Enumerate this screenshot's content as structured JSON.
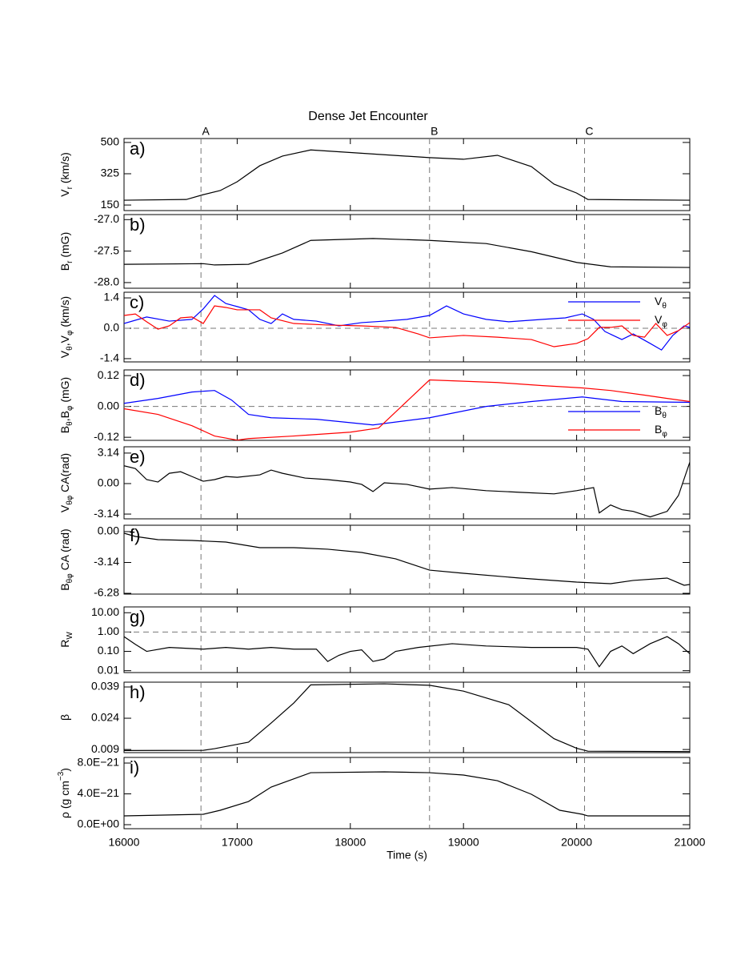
{
  "chart_data": [
    {
      "type": "line",
      "title": "Dense Jet Encounter",
      "label": "a)",
      "ylabel": [
        {
          "t": "V"
        },
        {
          "t": "r",
          "sub": true
        },
        {
          "t": " (km/s)"
        }
      ],
      "markers": [
        {
          "label": "A",
          "x": 16680
        },
        {
          "label": "B",
          "x": 18700
        },
        {
          "label": "C",
          "x": 20070
        }
      ],
      "xlim": [
        16000,
        21000
      ],
      "xticks": [
        16000,
        17000,
        18000,
        19000,
        20000,
        21000
      ],
      "ylim": [
        119,
        522
      ],
      "yticks": [
        150,
        325,
        500
      ],
      "series": [
        {
          "color": "#000000",
          "x": [
            16000,
            16550,
            16700,
            16850,
            17000,
            17200,
            17400,
            17650,
            18700,
            19000,
            19300,
            19600,
            19800,
            20000,
            20100,
            21000
          ],
          "values": [
            177,
            181,
            208,
            231,
            280,
            370,
            424,
            458,
            415,
            406,
            428,
            365,
            267,
            217,
            181,
            177
          ]
        }
      ]
    },
    {
      "type": "line",
      "label": "b)",
      "ylabel": [
        {
          "t": "B"
        },
        {
          "t": "r",
          "sub": true
        },
        {
          "t": " (mG)"
        }
      ],
      "xlim": [
        16000,
        21000
      ],
      "xticks": [
        16000,
        17000,
        18000,
        19000,
        20000,
        21000
      ],
      "ylim": [
        -28.09,
        -26.92
      ],
      "yticks": [
        {
          "value": -27.0,
          "label": "-27.0"
        },
        -27.5,
        {
          "value": -28.0,
          "label": "-28.0"
        }
      ],
      "series": [
        {
          "color": "#000000",
          "x": [
            16000,
            16700,
            16800,
            17100,
            17400,
            17650,
            18200,
            18700,
            19200,
            19600,
            20000,
            20300,
            21000
          ],
          "values": [
            -27.71,
            -27.7,
            -27.72,
            -27.71,
            -27.53,
            -27.33,
            -27.3,
            -27.33,
            -27.38,
            -27.51,
            -27.68,
            -27.75,
            -27.76
          ]
        }
      ]
    },
    {
      "type": "line",
      "label": "c)",
      "ylabel": [
        {
          "t": "V"
        },
        {
          "t": "θ",
          "sub": true
        },
        {
          "t": ",V"
        },
        {
          "t": "φ",
          "sub": true
        },
        {
          "t": " (km/s)"
        }
      ],
      "xlim": [
        16000,
        21000
      ],
      "xticks": [
        16000,
        17000,
        18000,
        19000,
        20000,
        21000
      ],
      "ylim": [
        -1.55,
        1.66
      ],
      "yticks": [
        1.4,
        {
          "value": 0.0,
          "label": "0.0"
        },
        -1.4
      ],
      "hlines": [
        0
      ],
      "legend": "upper right",
      "series": [
        {
          "name": [
            {
              "t": "V"
            },
            {
              "t": "θ",
              "sub": true
            }
          ],
          "color": "#0000ff",
          "x": [
            16000,
            16200,
            16400,
            16600,
            16700,
            16800,
            16900,
            17000,
            17100,
            17200,
            17300,
            17400,
            17500,
            17700,
            17900,
            18100,
            18300,
            18500,
            18700,
            18850,
            19000,
            19200,
            19400,
            19700,
            19900,
            20050,
            20150,
            20250,
            20400,
            20500,
            20650,
            20750,
            20850,
            20950,
            21000
          ],
          "values": [
            0.22,
            0.52,
            0.33,
            0.41,
            0.89,
            1.51,
            1.14,
            1.0,
            0.85,
            0.41,
            0.22,
            0.66,
            0.41,
            0.33,
            0.11,
            0.26,
            0.33,
            0.41,
            0.59,
            1.03,
            0.66,
            0.41,
            0.3,
            0.41,
            0.48,
            0.66,
            0.41,
            -0.15,
            -0.52,
            -0.26,
            -0.7,
            -1.0,
            -0.33,
            0.11,
            0.04
          ]
        },
        {
          "name": [
            {
              "t": "V"
            },
            {
              "t": "φ",
              "sub": true
            }
          ],
          "color": "#ff0000",
          "x": [
            16000,
            16100,
            16200,
            16300,
            16400,
            16500,
            16600,
            16700,
            16800,
            16900,
            17000,
            17200,
            17300,
            17500,
            17800,
            18100,
            18400,
            18600,
            18700,
            19000,
            19300,
            19600,
            19800,
            20000,
            20100,
            20200,
            20300,
            20400,
            20500,
            20600,
            20700,
            20800,
            20900,
            21000
          ],
          "values": [
            0.59,
            0.66,
            0.3,
            -0.04,
            0.11,
            0.48,
            0.52,
            0.22,
            1.03,
            0.96,
            0.85,
            0.85,
            0.48,
            0.22,
            0.15,
            0.11,
            0.04,
            -0.26,
            -0.44,
            -0.33,
            -0.41,
            -0.52,
            -0.85,
            -0.7,
            -0.48,
            0.04,
            0.04,
            0.11,
            -0.33,
            -0.41,
            0.22,
            -0.33,
            -0.11,
            0.26
          ]
        }
      ]
    },
    {
      "type": "line",
      "label": "d)",
      "ylabel": [
        {
          "t": "B"
        },
        {
          "t": "θ",
          "sub": true
        },
        {
          "t": ",B"
        },
        {
          "t": "φ",
          "sub": true
        },
        {
          "t": " (mG)"
        }
      ],
      "xlim": [
        16000,
        21000
      ],
      "xticks": [
        16000,
        17000,
        18000,
        19000,
        20000,
        21000
      ],
      "ylim": [
        -0.132,
        0.142
      ],
      "yticks": [
        0.12,
        {
          "value": 0.0,
          "label": "0.00"
        },
        -0.12
      ],
      "hlines": [
        0
      ],
      "legend": "lower right",
      "series": [
        {
          "name": [
            {
              "t": "B"
            },
            {
              "t": "θ",
              "sub": true
            }
          ],
          "color": "#0000ff",
          "x": [
            16000,
            16300,
            16600,
            16800,
            16950,
            17100,
            17300,
            17700,
            18200,
            18700,
            19200,
            19600,
            20050,
            20400,
            21000
          ],
          "values": [
            0.012,
            0.031,
            0.056,
            0.062,
            0.025,
            -0.031,
            -0.044,
            -0.05,
            -0.072,
            -0.044,
            0.0,
            0.019,
            0.037,
            0.019,
            0.016
          ]
        },
        {
          "name": [
            {
              "t": "B"
            },
            {
              "t": "φ",
              "sub": true
            }
          ],
          "color": "#ff0000",
          "x": [
            16000,
            16300,
            16600,
            16800,
            17000,
            17100,
            17500,
            18000,
            18250,
            18700,
            19300,
            19700,
            20050,
            20300,
            20600,
            20800,
            21000
          ],
          "values": [
            -0.009,
            -0.031,
            -0.075,
            -0.115,
            -0.131,
            -0.125,
            -0.115,
            -0.1,
            -0.084,
            0.103,
            0.093,
            0.081,
            0.072,
            0.062,
            0.044,
            0.031,
            0.019
          ]
        }
      ]
    },
    {
      "type": "line",
      "label": "e)",
      "ylabel": [
        {
          "t": "V"
        },
        {
          "t": "θφ",
          "sub": true
        },
        {
          "t": " CA(rad)"
        }
      ],
      "xlim": [
        16000,
        21000
      ],
      "xticks": [
        16000,
        17000,
        18000,
        19000,
        20000,
        21000
      ],
      "ylim": [
        -3.63,
        3.79
      ],
      "yticks": [
        3.14,
        {
          "value": 0.0,
          "label": "0.00"
        },
        -3.14
      ],
      "series": [
        {
          "color": "#000000",
          "x": [
            16000,
            16100,
            16200,
            16300,
            16400,
            16500,
            16600,
            16700,
            16800,
            16900,
            17000,
            17200,
            17300,
            17400,
            17600,
            17800,
            18000,
            18100,
            18200,
            18300,
            18500,
            18700,
            18900,
            19200,
            19500,
            19800,
            20000,
            20150,
            20200,
            20300,
            20400,
            20500,
            20650,
            20800,
            20900,
            21000
          ],
          "values": [
            1.83,
            1.55,
            0.41,
            0.16,
            1.06,
            1.22,
            0.73,
            0.24,
            0.41,
            0.73,
            0.65,
            0.9,
            1.39,
            1.06,
            0.57,
            0.41,
            0.16,
            -0.08,
            -0.82,
            0.08,
            -0.08,
            -0.57,
            -0.41,
            -0.73,
            -0.9,
            -1.06,
            -0.73,
            -0.41,
            -3.02,
            -2.2,
            -2.69,
            -2.86,
            -3.43,
            -2.86,
            -1.22,
            2.2
          ]
        }
      ]
    },
    {
      "type": "line",
      "label": "f)",
      "ylabel": [
        {
          "t": "B"
        },
        {
          "t": "θφ",
          "sub": true
        },
        {
          "t": " CA (rad)"
        }
      ],
      "xlim": [
        16000,
        21000
      ],
      "xticks": [
        16000,
        17000,
        18000,
        19000,
        20000,
        21000
      ],
      "ylim": [
        -6.36,
        0.65
      ],
      "yticks": [
        {
          "value": 0.0,
          "label": "0.00"
        },
        -3.14,
        -6.28
      ],
      "series": [
        {
          "color": "#000000",
          "x": [
            16000,
            16100,
            16300,
            16600,
            16900,
            17200,
            17500,
            17800,
            18100,
            18400,
            18700,
            19000,
            19500,
            20000,
            20300,
            20500,
            20800,
            20950,
            21000
          ],
          "values": [
            -0.16,
            -0.49,
            -0.82,
            -0.9,
            -1.06,
            -1.63,
            -1.63,
            -1.79,
            -2.12,
            -2.77,
            -3.92,
            -4.24,
            -4.73,
            -5.14,
            -5.3,
            -4.97,
            -4.73,
            -5.46,
            -5.38
          ]
        }
      ]
    },
    {
      "type": "line",
      "label": "g)",
      "ylabel": [
        {
          "t": "R"
        },
        {
          "t": "W",
          "sub": true
        }
      ],
      "xlim": [
        16000,
        21000
      ],
      "xticks": [
        16000,
        17000,
        18000,
        19000,
        20000,
        21000
      ],
      "ylog": true,
      "ylim": [
        0.008,
        20
      ],
      "yticks": [
        {
          "value": 10,
          "label": "10.00"
        },
        {
          "value": 1,
          "label": "1.00"
        },
        {
          "value": 0.1,
          "label": "0.10"
        },
        {
          "value": 0.01,
          "label": "0.01"
        }
      ],
      "hlines": [
        1
      ],
      "series": [
        {
          "color": "#000000",
          "x": [
            16000,
            16100,
            16200,
            16400,
            16700,
            16900,
            17100,
            17300,
            17500,
            17700,
            17800,
            17900,
            18000,
            18100,
            18200,
            18300,
            18400,
            18600,
            18900,
            19200,
            19600,
            20000,
            20100,
            20200,
            20300,
            20400,
            20500,
            20650,
            20800,
            20900,
            21000
          ],
          "values": [
            0.58,
            0.23,
            0.1,
            0.16,
            0.13,
            0.16,
            0.13,
            0.16,
            0.13,
            0.13,
            0.03,
            0.063,
            0.1,
            0.12,
            0.03,
            0.04,
            0.1,
            0.16,
            0.25,
            0.19,
            0.16,
            0.16,
            0.13,
            0.016,
            0.1,
            0.19,
            0.076,
            0.25,
            0.58,
            0.25,
            0.076
          ]
        }
      ]
    },
    {
      "type": "line",
      "label": "h)",
      "ylabel": [
        {
          "t": "β"
        }
      ],
      "xlim": [
        16000,
        21000
      ],
      "xticks": [
        16000,
        17000,
        18000,
        19000,
        20000,
        21000
      ],
      "ylim": [
        0.0075,
        0.0413
      ],
      "yticks": [
        0.039,
        0.024,
        0.009
      ],
      "series": [
        {
          "color": "#000000",
          "x": [
            16000,
            16700,
            16800,
            17100,
            17300,
            17500,
            17650,
            18300,
            18700,
            19000,
            19400,
            19800,
            20000,
            20100,
            21000
          ],
          "values": [
            0.0085,
            0.0086,
            0.0094,
            0.0125,
            0.0217,
            0.0313,
            0.04,
            0.0405,
            0.0398,
            0.037,
            0.0305,
            0.0142,
            0.0096,
            0.0082,
            0.008
          ]
        }
      ]
    },
    {
      "type": "line",
      "label": "i)",
      "ylabel": [
        {
          "t": "ρ (g cm"
        },
        {
          "t": "−3",
          "sup": true
        },
        {
          "t": ")"
        }
      ],
      "xlabel": "Time (s)",
      "xlim": [
        16000,
        21000
      ],
      "xticks": [
        16000,
        17000,
        18000,
        19000,
        20000,
        21000
      ],
      "ylim": [
        -5.2e-22,
        8.73e-21
      ],
      "yticks": [
        {
          "value": 8e-21,
          "label": "8.0E−21"
        },
        {
          "value": 4e-21,
          "label": "4.0E−21"
        },
        {
          "value": 0,
          "label": "0.0E+00"
        }
      ],
      "series": [
        {
          "color": "#000000",
          "x": [
            16000,
            16700,
            16850,
            17100,
            17300,
            17650,
            18300,
            18700,
            19000,
            19300,
            19600,
            19850,
            20050,
            20100,
            21000
          ],
          "values": [
            1.14e-21,
            1.35e-21,
            1.87e-21,
            3.01e-21,
            4.88e-21,
            6.75e-21,
            6.86e-21,
            6.75e-21,
            6.44e-21,
            5.71e-21,
            3.95e-21,
            1.87e-21,
            1.35e-21,
            1.14e-21,
            1.14e-21
          ]
        }
      ]
    }
  ]
}
